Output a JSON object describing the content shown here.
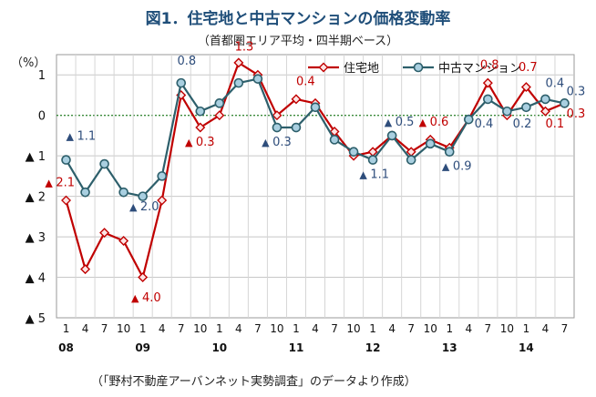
{
  "title": "図1．住宅地と中古マンションの価格変動率",
  "subtitle": "（首都圏エリア平均・四半期ベース）",
  "source": "（「野村不動産アーバンネット実勢調査」のデータより作成）",
  "chart_data": {
    "type": "line",
    "yunit": "（%）",
    "ylim": [
      -5,
      1.5
    ],
    "yticks": [
      1,
      0,
      -1,
      -2,
      -3,
      -4,
      -5
    ],
    "ytick_labels": [
      "1",
      "0",
      "▲ 1",
      "▲ 2",
      "▲ 3",
      "▲ 4",
      "▲ 5"
    ],
    "x_quarter_labels": [
      "1",
      "4",
      "7",
      "10",
      "1",
      "4",
      "7",
      "10",
      "1",
      "4",
      "7",
      "10",
      "1",
      "4",
      "7",
      "10",
      "1",
      "4",
      "7",
      "10",
      "1",
      "4",
      "7",
      "10",
      "1",
      "4",
      "7"
    ],
    "x_year_labels": [
      {
        "label": "08",
        "index": 0
      },
      {
        "label": "09",
        "index": 4
      },
      {
        "label": "10",
        "index": 8
      },
      {
        "label": "11",
        "index": 12
      },
      {
        "label": "12",
        "index": 16
      },
      {
        "label": "13",
        "index": 20
      },
      {
        "label": "14",
        "index": 24
      }
    ],
    "legend_position": "top-right",
    "series": [
      {
        "name": "住宅地",
        "color": "#c00000",
        "marker": "diamond",
        "values": [
          -2.1,
          -3.8,
          -2.9,
          -3.1,
          -4.0,
          -2.1,
          0.5,
          -0.3,
          0.0,
          1.3,
          1.0,
          0.0,
          0.4,
          0.3,
          -0.4,
          -1.0,
          -0.9,
          -0.5,
          -0.9,
          -0.6,
          -0.8,
          -0.1,
          0.8,
          0.0,
          0.7,
          0.1,
          0.3
        ]
      },
      {
        "name": "中古マンション",
        "color": "#2d5f6b",
        "marker": "circle",
        "values": [
          -1.1,
          -1.9,
          -1.2,
          -1.9,
          -2.0,
          -1.5,
          0.8,
          0.1,
          0.3,
          0.8,
          0.9,
          -0.3,
          -0.3,
          0.2,
          -0.6,
          -0.9,
          -1.1,
          -0.5,
          -1.1,
          -0.7,
          -0.9,
          -0.1,
          0.4,
          0.1,
          0.2,
          0.4,
          0.3
        ]
      }
    ],
    "annotations": [
      {
        "text": "1.1",
        "neg": true,
        "color": "#2e4d7b",
        "idx": 0,
        "val": -0.6
      },
      {
        "text": "2.1",
        "neg": true,
        "color": "#c00000",
        "idx": -1.1,
        "val": -1.75
      },
      {
        "text": "2.0",
        "neg": true,
        "color": "#2e4d7b",
        "idx": 3.3,
        "val": -2.35
      },
      {
        "text": "4.0",
        "neg": true,
        "color": "#c00000",
        "idx": 3.4,
        "val": -4.6
      },
      {
        "text": "0.8",
        "neg": false,
        "color": "#2e4d7b",
        "idx": 5.8,
        "val": 1.25
      },
      {
        "text": "0.3",
        "neg": true,
        "color": "#c00000",
        "idx": 6.2,
        "val": -0.75
      },
      {
        "text": "1.3",
        "neg": false,
        "color": "#c00000",
        "idx": 8.8,
        "val": 1.6
      },
      {
        "text": "0.3",
        "neg": true,
        "color": "#2e4d7b",
        "idx": 10.2,
        "val": -0.75
      },
      {
        "text": "0.4",
        "neg": false,
        "color": "#c00000",
        "idx": 12.0,
        "val": 0.75
      },
      {
        "text": "1.1",
        "neg": true,
        "color": "#2e4d7b",
        "idx": 15.3,
        "val": -1.55
      },
      {
        "text": "0.5",
        "neg": true,
        "color": "#2e4d7b",
        "idx": 16.6,
        "val": -0.25
      },
      {
        "text": "0.6",
        "neg": true,
        "color": "#c00000",
        "idx": 18.4,
        "val": -0.25
      },
      {
        "text": "0.9",
        "neg": true,
        "color": "#2e4d7b",
        "idx": 19.6,
        "val": -1.35
      },
      {
        "text": "0.8",
        "neg": false,
        "color": "#c00000",
        "idx": 21.6,
        "val": 1.15
      },
      {
        "text": "0.4",
        "neg": false,
        "color": "#2e4d7b",
        "idx": 21.3,
        "val": -0.3
      },
      {
        "text": "0.7",
        "neg": false,
        "color": "#c00000",
        "idx": 23.6,
        "val": 1.1
      },
      {
        "text": "0.2",
        "neg": false,
        "color": "#2e4d7b",
        "idx": 23.3,
        "val": -0.3
      },
      {
        "text": "0.4",
        "neg": false,
        "color": "#2e4d7b",
        "idx": 25.0,
        "val": 0.7
      },
      {
        "text": "0.1",
        "neg": false,
        "color": "#c00000",
        "idx": 25.0,
        "val": -0.3
      },
      {
        "text": "0.3",
        "neg": false,
        "color": "#2e4d7b",
        "idx": 26.1,
        "val": 0.5
      },
      {
        "text": "0.3",
        "neg": false,
        "color": "#c00000",
        "idx": 26.1,
        "val": -0.05
      }
    ]
  }
}
